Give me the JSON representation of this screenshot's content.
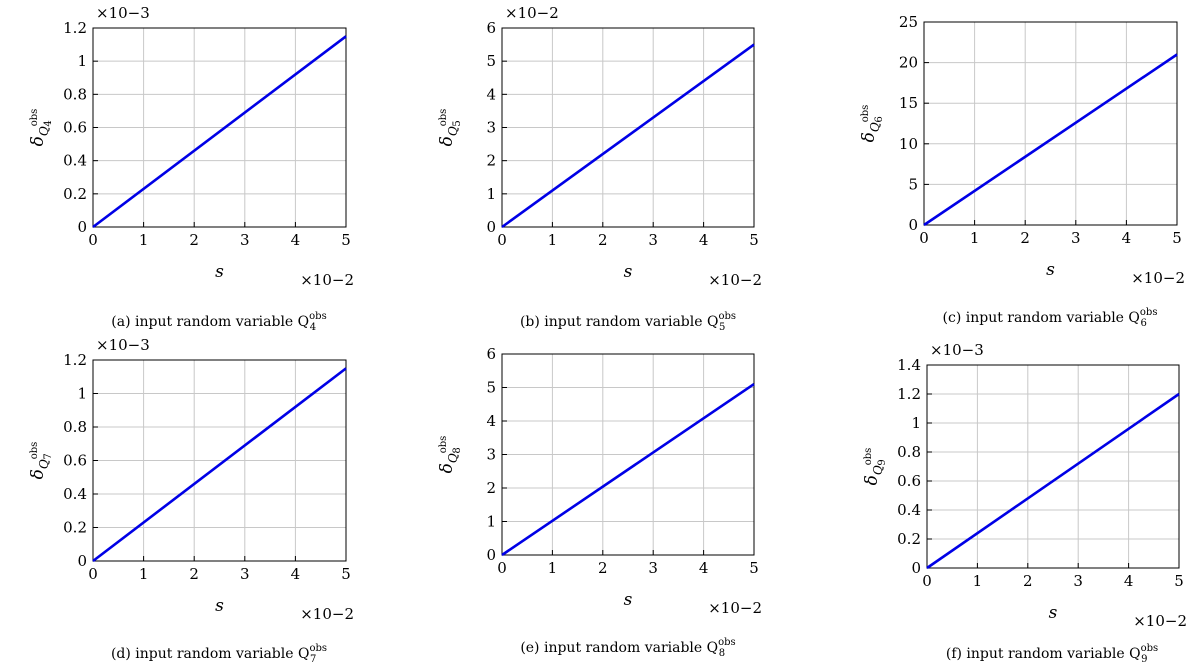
{
  "chart_data": [
    {
      "type": "line",
      "xlabel": "s",
      "x_exponent": "×10−2",
      "y_exponent": "×10−3",
      "ylabel": "δ",
      "ylabel_sub": "Q",
      "ylabel_sup": "obs",
      "ylabel_idx": "4",
      "caption_prefix": "(a) input random variable Q",
      "caption_sup": "obs",
      "caption_sub": "4",
      "xlim": [
        0,
        5
      ],
      "ylim": [
        0,
        1.2
      ],
      "xticks": [
        "0",
        "1",
        "2",
        "3",
        "4",
        "5"
      ],
      "yticks": [
        "0",
        "0.2",
        "0.4",
        "0.6",
        "0.8",
        "1",
        "1.2"
      ],
      "series": [
        {
          "x": [
            0,
            5
          ],
          "y": [
            0,
            1.15
          ],
          "color": "#0000e6"
        }
      ]
    },
    {
      "type": "line",
      "xlabel": "s",
      "x_exponent": "×10−2",
      "y_exponent": "×10−2",
      "ylabel": "δ",
      "ylabel_sub": "Q",
      "ylabel_sup": "obs",
      "ylabel_idx": "5",
      "caption_prefix": "(b) input random variable Q",
      "caption_sup": "obs",
      "caption_sub": "5",
      "xlim": [
        0,
        5
      ],
      "ylim": [
        0,
        6
      ],
      "xticks": [
        "0",
        "1",
        "2",
        "3",
        "4",
        "5"
      ],
      "yticks": [
        "0",
        "1",
        "2",
        "3",
        "4",
        "5",
        "6"
      ],
      "series": [
        {
          "x": [
            0,
            5
          ],
          "y": [
            0,
            5.5
          ],
          "color": "#0000e6"
        }
      ]
    },
    {
      "type": "line",
      "xlabel": "s",
      "x_exponent": "×10−2",
      "y_exponent": "",
      "ylabel": "δ",
      "ylabel_sub": "Q",
      "ylabel_sup": "obs",
      "ylabel_idx": "6",
      "caption_prefix": "(c) input random variable Q",
      "caption_sup": "obs",
      "caption_sub": "6",
      "xlim": [
        0,
        5
      ],
      "ylim": [
        0,
        25
      ],
      "xticks": [
        "0",
        "1",
        "2",
        "3",
        "4",
        "5"
      ],
      "yticks": [
        "0",
        "5",
        "10",
        "15",
        "20",
        "25"
      ],
      "series": [
        {
          "x": [
            0,
            5
          ],
          "y": [
            0,
            21
          ],
          "color": "#0000e6"
        }
      ]
    },
    {
      "type": "line",
      "xlabel": "s",
      "x_exponent": "×10−2",
      "y_exponent": "×10−3",
      "ylabel": "δ",
      "ylabel_sub": "Q",
      "ylabel_sup": "obs",
      "ylabel_idx": "7",
      "caption_prefix": "(d) input random variable Q",
      "caption_sup": "obs",
      "caption_sub": "7",
      "xlim": [
        0,
        5
      ],
      "ylim": [
        0,
        1.2
      ],
      "xticks": [
        "0",
        "1",
        "2",
        "3",
        "4",
        "5"
      ],
      "yticks": [
        "0",
        "0.2",
        "0.4",
        "0.6",
        "0.8",
        "1",
        "1.2"
      ],
      "series": [
        {
          "x": [
            0,
            5
          ],
          "y": [
            0,
            1.15
          ],
          "color": "#0000e6"
        }
      ]
    },
    {
      "type": "line",
      "xlabel": "s",
      "x_exponent": "×10−2",
      "y_exponent": "",
      "ylabel": "δ",
      "ylabel_sub": "Q",
      "ylabel_sup": "obs",
      "ylabel_idx": "8",
      "caption_prefix": "(e) input random variable Q",
      "caption_sup": "obs",
      "caption_sub": "8",
      "xlim": [
        0,
        5
      ],
      "ylim": [
        0,
        6
      ],
      "xticks": [
        "0",
        "1",
        "2",
        "3",
        "4",
        "5"
      ],
      "yticks": [
        "0",
        "1",
        "2",
        "3",
        "4",
        "5",
        "6"
      ],
      "series": [
        {
          "x": [
            0,
            5
          ],
          "y": [
            0,
            5.1
          ],
          "color": "#0000e6"
        }
      ]
    },
    {
      "type": "line",
      "xlabel": "s",
      "x_exponent": "×10−2",
      "y_exponent": "×10−3",
      "ylabel": "δ",
      "ylabel_sub": "Q",
      "ylabel_sup": "obs",
      "ylabel_idx": "9",
      "caption_prefix": "(f) input random variable Q",
      "caption_sup": "obs",
      "caption_sub": "9",
      "xlim": [
        0,
        5
      ],
      "ylim": [
        0,
        1.4
      ],
      "xticks": [
        "0",
        "1",
        "2",
        "3",
        "4",
        "5"
      ],
      "yticks": [
        "0",
        "0.2",
        "0.4",
        "0.6",
        "0.8",
        "1",
        "1.2",
        "1.4"
      ],
      "series": [
        {
          "x": [
            0,
            5
          ],
          "y": [
            0,
            1.2
          ],
          "color": "#0000e6"
        }
      ]
    }
  ]
}
